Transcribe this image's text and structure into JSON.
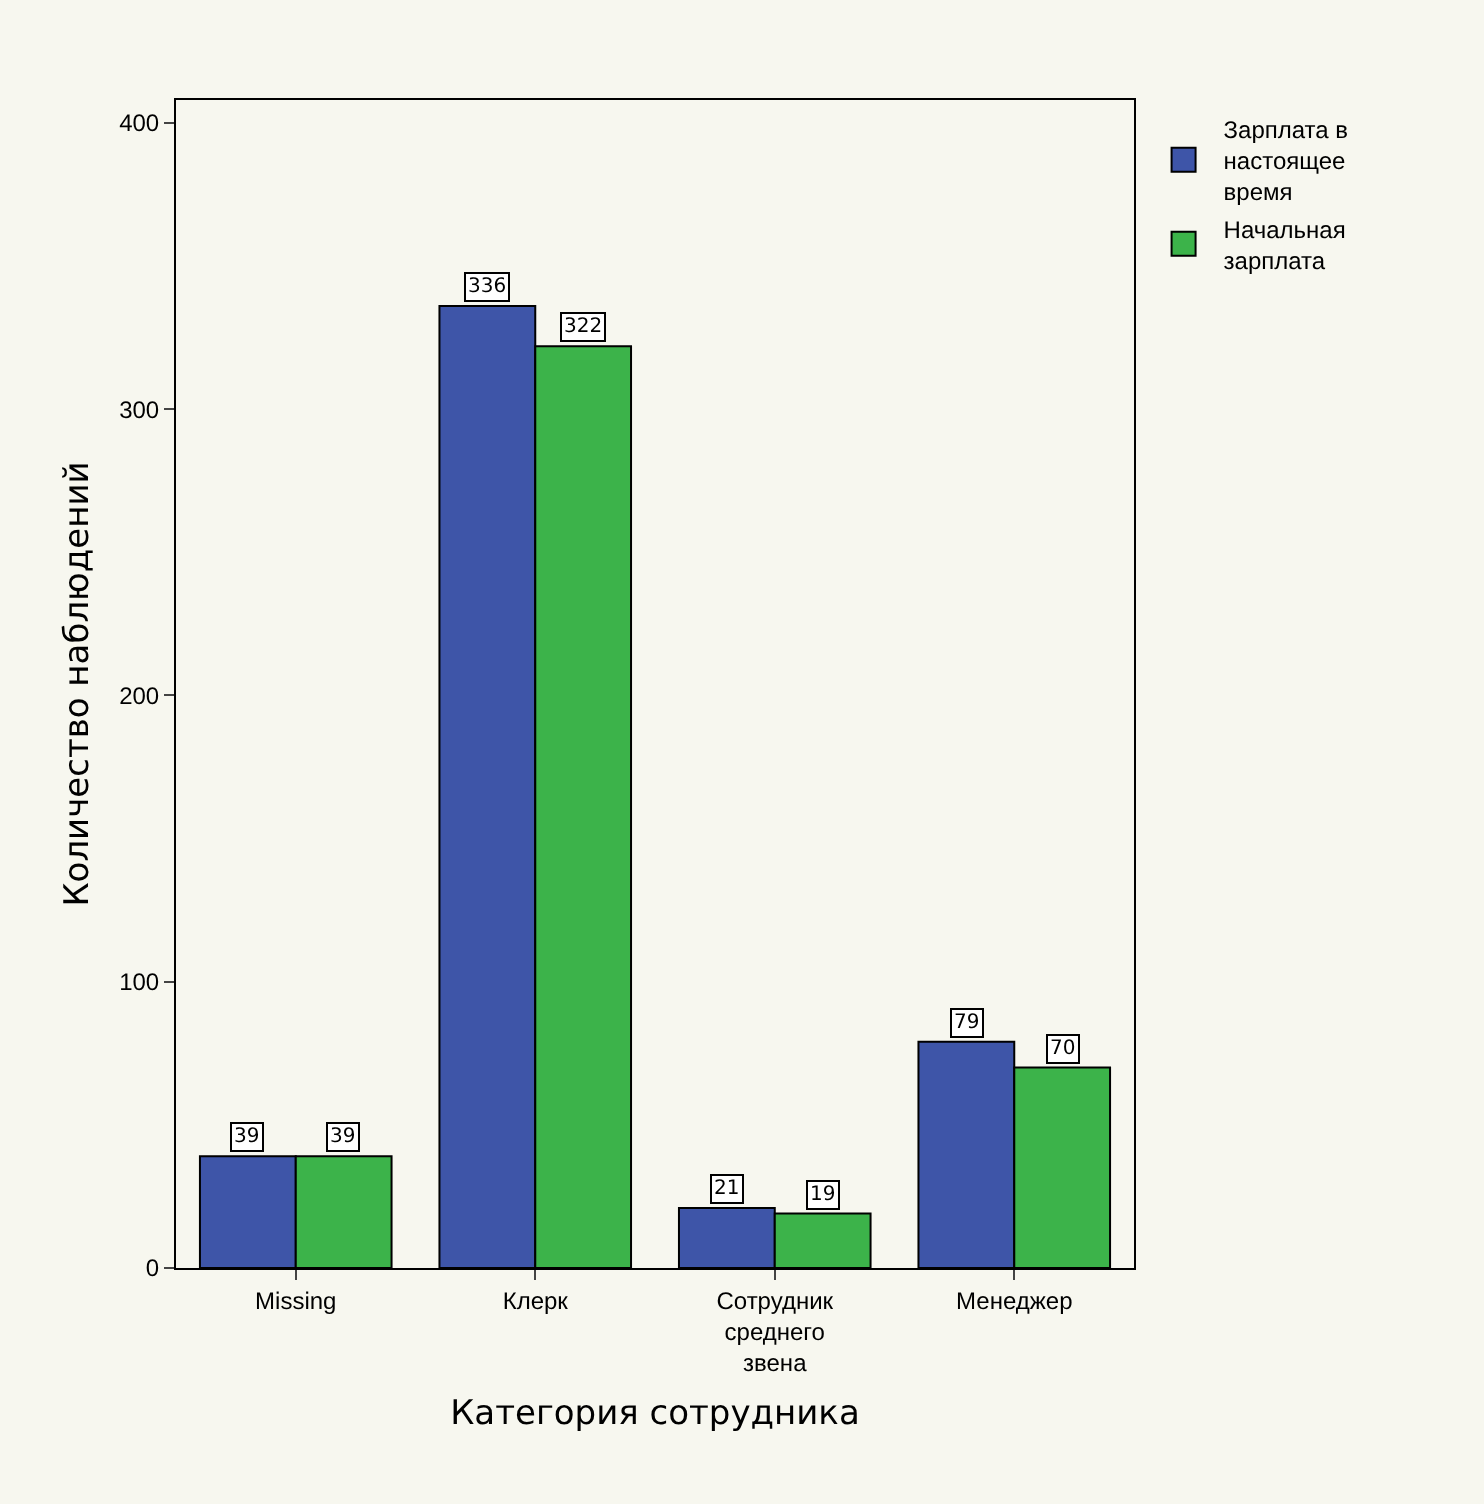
{
  "chart_data": {
    "type": "bar",
    "xlabel": "Категория сотрудника",
    "ylabel": "Количество наблюдений",
    "categories": [
      "Missing",
      "Клерк",
      "Сотрудник\nсреднего\nзвена",
      "Менеджер"
    ],
    "series": [
      {
        "name": "Зарплата в\nнастоящее\nвремя",
        "color": "#3e55a8",
        "values": [
          39,
          336,
          21,
          79
        ]
      },
      {
        "name": "Начальная\nзарплата",
        "color": "#3cb34a",
        "values": [
          39,
          322,
          19,
          70
        ]
      }
    ],
    "ylim": [
      0,
      408
    ],
    "yticks": [
      0,
      100,
      200,
      300,
      400
    ],
    "grid": false,
    "legend": "top right",
    "data_labels": true
  }
}
